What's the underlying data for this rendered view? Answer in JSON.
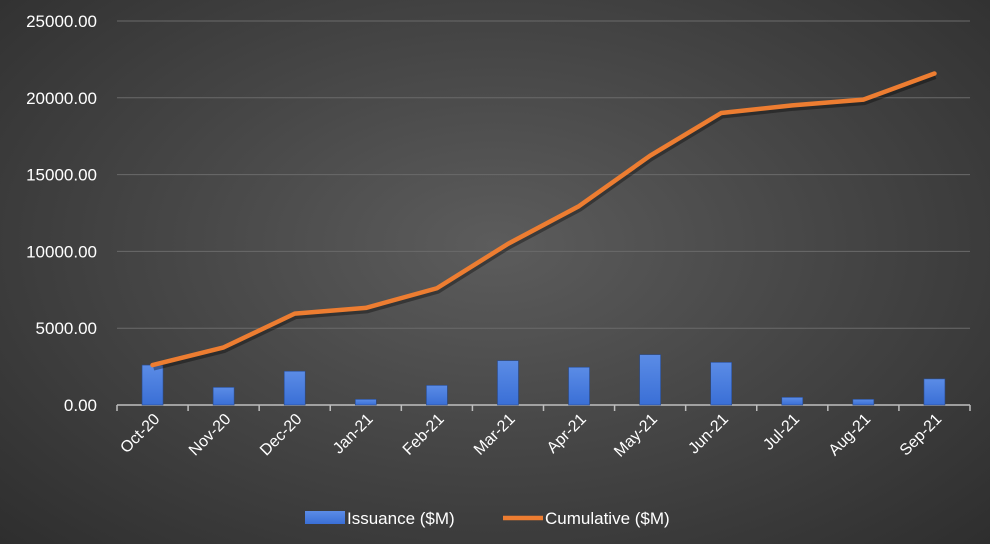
{
  "chart_data": {
    "type": "bar+line",
    "categories": [
      "Oct-20",
      "Nov-20",
      "Dec-20",
      "Jan-21",
      "Feb-21",
      "Mar-21",
      "Apr-21",
      "May-21",
      "Jun-21",
      "Jul-21",
      "Aug-21",
      "Sep-21"
    ],
    "series": [
      {
        "name": "Issuance ($M)",
        "type": "bar",
        "color": "#4a7fe0",
        "values": [
          2600,
          1150,
          2200,
          370,
          1280,
          2890,
          2460,
          3280,
          2780,
          500,
          370,
          1700
        ]
      },
      {
        "name": "Cumulative ($M)",
        "type": "line",
        "color": "#ed7d31",
        "values": [
          2600,
          3750,
          5950,
          6320,
          7600,
          10490,
          12950,
          16230,
          19010,
          19510,
          19880,
          21580
        ]
      }
    ],
    "ylim": [
      0,
      25000
    ],
    "yticks": [
      "0.00",
      "5000.00",
      "10000.00",
      "15000.00",
      "20000.00",
      "25000.00"
    ],
    "grid": true,
    "legend": "bottom"
  }
}
